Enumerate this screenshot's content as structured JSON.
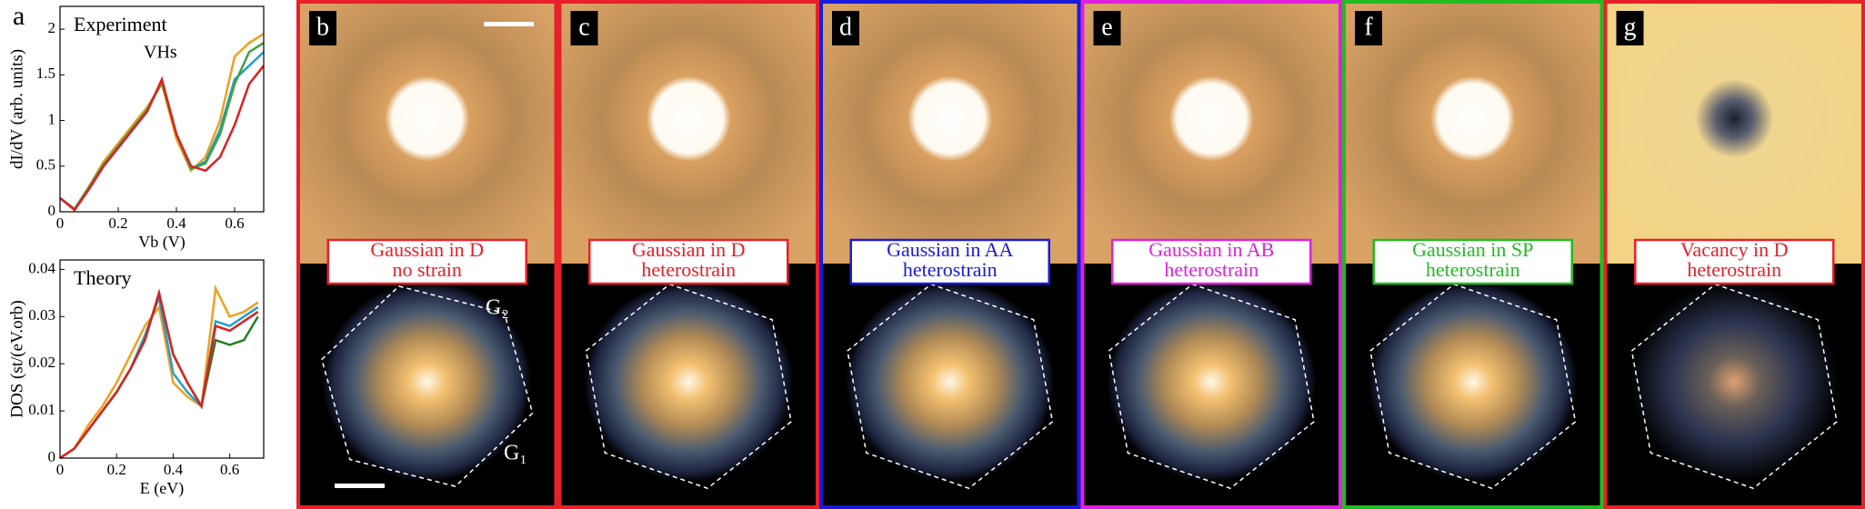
{
  "panel_letter": "a",
  "chart_data": [
    {
      "type": "line",
      "title": "Experiment",
      "annotation": "VHs",
      "xlabel": "Vb (V)",
      "ylabel": "dI/dV (arb. units)",
      "x": [
        0,
        0.05,
        0.1,
        0.15,
        0.2,
        0.25,
        0.3,
        0.35,
        0.4,
        0.45,
        0.5,
        0.55,
        0.6,
        0.65,
        0.7
      ],
      "xlim": [
        0,
        0.7
      ],
      "xticks": [
        0,
        0.2,
        0.4,
        0.6
      ],
      "ylim": [
        0,
        2.25
      ],
      "yticks": [
        0,
        0.5,
        1,
        1.5,
        2
      ],
      "series": [
        {
          "color": "#f0a020",
          "values": [
            0.15,
            0.03,
            0.28,
            0.55,
            0.75,
            0.95,
            1.15,
            1.4,
            0.8,
            0.45,
            0.6,
            1.0,
            1.7,
            1.85,
            1.95
          ]
        },
        {
          "color": "#20a0d0",
          "values": [
            0.15,
            0.03,
            0.27,
            0.52,
            0.72,
            0.92,
            1.12,
            1.42,
            0.85,
            0.47,
            0.55,
            0.9,
            1.45,
            1.6,
            1.75
          ]
        },
        {
          "color": "#40a040",
          "values": [
            0.15,
            0.03,
            0.27,
            0.52,
            0.72,
            0.92,
            1.12,
            1.42,
            0.85,
            0.47,
            0.53,
            0.85,
            1.4,
            1.75,
            1.85
          ]
        },
        {
          "color": "#dd2020",
          "values": [
            0.15,
            0.02,
            0.25,
            0.5,
            0.7,
            0.9,
            1.1,
            1.45,
            0.85,
            0.5,
            0.45,
            0.6,
            0.95,
            1.4,
            1.6
          ]
        }
      ]
    },
    {
      "type": "line",
      "title": "Theory",
      "xlabel": "E (eV)",
      "ylabel": "DOS (st/(eV.orb)",
      "x": [
        0,
        0.05,
        0.1,
        0.15,
        0.2,
        0.25,
        0.3,
        0.35,
        0.4,
        0.45,
        0.5,
        0.55,
        0.6,
        0.65,
        0.7
      ],
      "xlim": [
        0,
        0.72
      ],
      "xticks": [
        0,
        0.2,
        0.4,
        0.6
      ],
      "ylim": [
        0,
        0.042
      ],
      "yticks": [
        0,
        0.01,
        0.02,
        0.03,
        0.04
      ],
      "series": [
        {
          "color": "#f0a020",
          "values": [
            0,
            0.002,
            0.007,
            0.011,
            0.016,
            0.022,
            0.028,
            0.032,
            0.016,
            0.013,
            0.011,
            0.036,
            0.03,
            0.031,
            0.033
          ]
        },
        {
          "color": "#20a0d0",
          "values": [
            0,
            0.002,
            0.006,
            0.01,
            0.014,
            0.019,
            0.026,
            0.034,
            0.018,
            0.014,
            0.011,
            0.029,
            0.028,
            0.03,
            0.032
          ]
        },
        {
          "color": "#208020",
          "values": [
            0,
            0.002,
            0.006,
            0.01,
            0.014,
            0.019,
            0.025,
            0.035,
            0.022,
            0.016,
            0.011,
            0.025,
            0.024,
            0.025,
            0.03
          ]
        },
        {
          "color": "#dd2020",
          "values": [
            0,
            0.002,
            0.006,
            0.01,
            0.014,
            0.019,
            0.025,
            0.035,
            0.022,
            0.016,
            0.011,
            0.028,
            0.027,
            0.029,
            0.031
          ]
        }
      ]
    }
  ],
  "panels": [
    {
      "letter": "b",
      "color": "#e8202a",
      "label": [
        "Gaussian in D",
        "no strain"
      ],
      "g2": "G₂",
      "g1": "G₁"
    },
    {
      "letter": "c",
      "color": "#e8202a",
      "label": [
        "Gaussian in D",
        "heterostrain"
      ]
    },
    {
      "letter": "d",
      "color": "#1a1adc",
      "label": [
        "Gaussian in AA",
        "heterostrain"
      ]
    },
    {
      "letter": "e",
      "color": "#e020e0",
      "label": [
        "Gaussian in AB",
        "heterostrain"
      ]
    },
    {
      "letter": "f",
      "color": "#22bb22",
      "label": [
        "Gaussian in SP",
        "heterostrain"
      ]
    },
    {
      "letter": "g",
      "color": "#e8202a",
      "label": [
        "Vacancy in D",
        "heterostrain"
      ]
    }
  ]
}
